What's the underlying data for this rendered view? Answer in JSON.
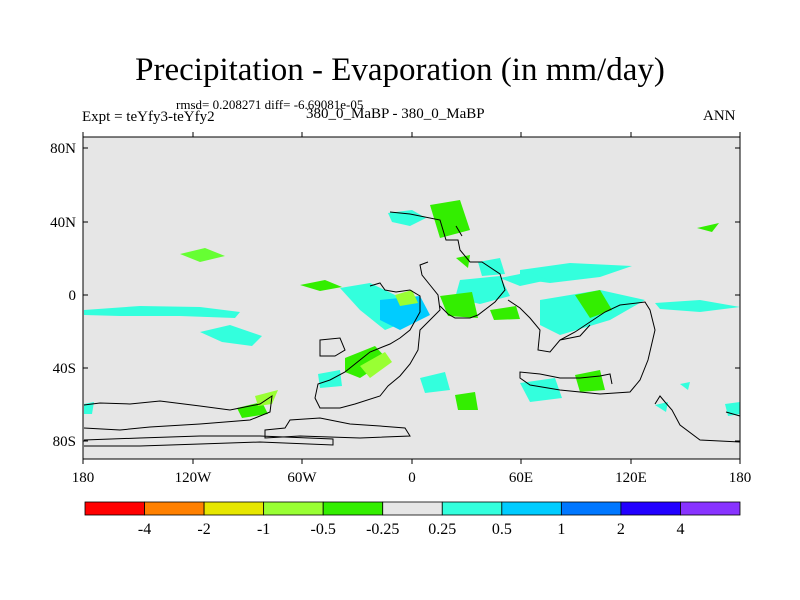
{
  "chart_data": {
    "type": "contour-map",
    "title": "Precipitation - Evaporation (in mm/day)",
    "stats_label": "rmsd= 0.208271  diff= -6.69081e-05",
    "left_label": "Expt = teYfy3-teYfy2",
    "center_label": "380_0_MaBP - 380_0_MaBP",
    "right_label": "ANN",
    "lon_ticks": [
      "180",
      "120W",
      "60W",
      "0",
      "60E",
      "120E",
      "180"
    ],
    "lat_ticks": [
      "80N",
      "40N",
      "0",
      "40S",
      "80S"
    ],
    "xlim": [
      -180,
      180
    ],
    "ylim": [
      -90,
      90
    ],
    "colorbar": {
      "labels": [
        "-4",
        "-2",
        "-1",
        "-0.5",
        "-0.25",
        "0.25",
        "0.5",
        "1",
        "2",
        "4"
      ],
      "colors": [
        "#ff0000",
        "#ff8000",
        "#e6e600",
        "#99ff33",
        "#33ee00",
        "#e6e6e6",
        "#33ffdd",
        "#00ccff",
        "#0077ff",
        "#2200ff",
        "#8833ff"
      ]
    }
  }
}
